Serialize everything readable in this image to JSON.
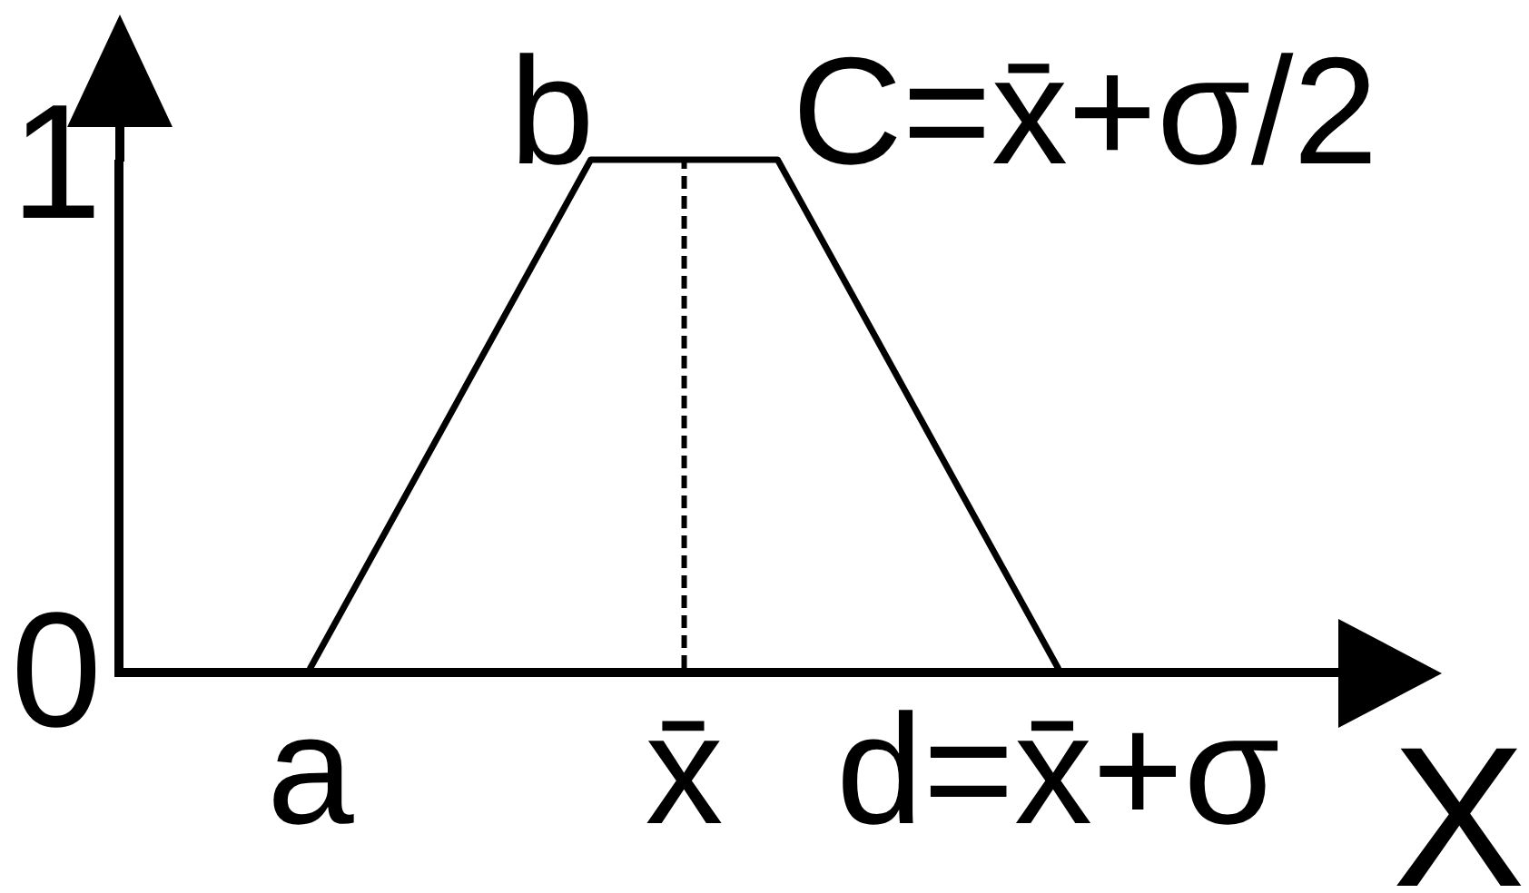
{
  "chart_data": {
    "type": "line",
    "xlabel": "X",
    "categories": [
      null,
      null,
      "a",
      null,
      null,
      null,
      "x̄",
      null,
      null,
      null,
      "d=x̄+σ",
      null,
      null,
      null
    ],
    "series": [
      {
        "color": "#000000",
        "values": [
          null,
          null,
          0,
          0.333,
          0.667,
          1,
          1,
          1,
          0.667,
          0.333,
          0,
          null,
          null,
          null
        ]
      }
    ],
    "ylim": [
      0,
      1
    ],
    "yticks": [
      0,
      1
    ],
    "ref_lines": [
      {
        "axis": "x",
        "value": "x̄",
        "color": "#000000",
        "line_style": "dashed"
      }
    ],
    "annotations": [
      "b",
      "C=x̄+σ/2"
    ]
  }
}
